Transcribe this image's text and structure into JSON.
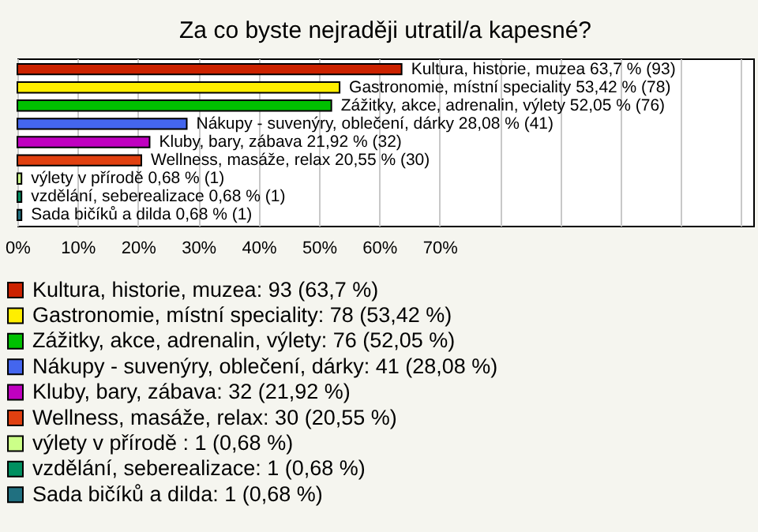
{
  "chart_data": {
    "type": "bar",
    "orientation": "horizontal",
    "title": "Za co byste nejraději utratil/a kapesné?",
    "categories": [
      null,
      null,
      null,
      null,
      null,
      null,
      null,
      null,
      null
    ],
    "series": [
      {
        "name": "Kultura, historie, muzea: 93 (63,7 %)",
        "color": "#cc2200",
        "values": [
          63.7,
          null,
          null,
          null,
          null,
          null,
          null,
          null,
          null
        ],
        "value_labels": [
          "Kultura, historie, muzea 63,7 % (93)",
          null,
          null,
          null,
          null,
          null,
          null,
          null,
          null
        ]
      },
      {
        "name": "Gastronomie, místní speciality: 78 (53,42 %)",
        "color": "#ffee00",
        "values": [
          null,
          53.42,
          null,
          null,
          null,
          null,
          null,
          null,
          null
        ],
        "value_labels": [
          null,
          "Gastronomie, místní speciality 53,42 % (78)",
          null,
          null,
          null,
          null,
          null,
          null,
          null
        ]
      },
      {
        "name": "Zážitky, akce, adrenalin, výlety: 76 (52,05 %)",
        "color": "#00c000",
        "values": [
          null,
          null,
          52.05,
          null,
          null,
          null,
          null,
          null,
          null
        ],
        "value_labels": [
          null,
          null,
          "Zážitky, akce, adrenalin, výlety 52,05 % (76)",
          null,
          null,
          null,
          null,
          null,
          null
        ]
      },
      {
        "name": "Nákupy - suvenýry, oblečení, dárky: 41 (28,08 %)",
        "color": "#4466ee",
        "values": [
          null,
          null,
          null,
          28.08,
          null,
          null,
          null,
          null,
          null
        ],
        "value_labels": [
          null,
          null,
          null,
          "Nákupy - suvenýry, oblečení, dárky 28,08 % (41)",
          null,
          null,
          null,
          null,
          null
        ]
      },
      {
        "name": "Kluby, bary, zábava: 32 (21,92 %)",
        "color": "#c000c0",
        "values": [
          null,
          null,
          null,
          null,
          21.92,
          null,
          null,
          null,
          null
        ],
        "value_labels": [
          null,
          null,
          null,
          null,
          "Kluby, bary, zábava 21,92 % (32)",
          null,
          null,
          null,
          null
        ]
      },
      {
        "name": "Wellness, masáže, relax: 30 (20,55 %)",
        "color": "#e04010",
        "values": [
          null,
          null,
          null,
          null,
          null,
          20.55,
          null,
          null,
          null
        ],
        "value_labels": [
          null,
          null,
          null,
          null,
          null,
          "Wellness, masáže, relax 20,55 % (30)",
          null,
          null,
          null
        ]
      },
      {
        "name": "výlety v přírodě : 1 (0,68 %)",
        "color": "#ccff88",
        "values": [
          null,
          null,
          null,
          null,
          null,
          null,
          0.68,
          null,
          null
        ],
        "value_labels": [
          null,
          null,
          null,
          null,
          null,
          null,
          "výlety v přírodě  0,68 % (1)",
          null,
          null
        ]
      },
      {
        "name": "vzdělání, seberealizace: 1 (0,68 %)",
        "color": "#009060",
        "values": [
          null,
          null,
          null,
          null,
          null,
          null,
          null,
          0.68,
          null
        ],
        "value_labels": [
          null,
          null,
          null,
          null,
          null,
          null,
          null,
          "vzdělání, seberealizace 0,68 % (1)",
          null
        ]
      },
      {
        "name": "Sada bičíků a dilda: 1 (0,68 %)",
        "color": "#207080",
        "values": [
          null,
          null,
          null,
          null,
          null,
          null,
          null,
          null,
          0.68
        ],
        "value_labels": [
          null,
          null,
          null,
          null,
          null,
          null,
          null,
          null,
          "Sada bičíků a dilda 0,68 % (1)"
        ]
      }
    ],
    "xlim": [
      0,
      122
    ],
    "xticks": [
      {
        "value": 0,
        "label": "0%"
      },
      {
        "value": 10,
        "label": "10%"
      },
      {
        "value": 20,
        "label": "20%"
      },
      {
        "value": 30,
        "label": "30%"
      },
      {
        "value": 40,
        "label": "40%"
      },
      {
        "value": 50,
        "label": "50%"
      },
      {
        "value": 60,
        "label": "60%"
      },
      {
        "value": 70,
        "label": "70%"
      },
      {
        "value": 80,
        "label": null
      },
      {
        "value": 90,
        "label": null
      },
      {
        "value": 100,
        "label": null
      },
      {
        "value": 110,
        "label": null
      },
      {
        "value": 120,
        "label": null
      }
    ],
    "grid": "x",
    "legend": "bottom",
    "tick_labels": "x"
  }
}
